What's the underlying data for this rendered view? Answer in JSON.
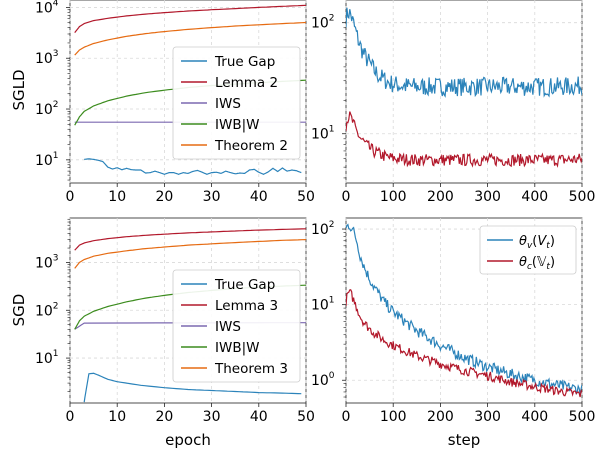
{
  "chart_data": [
    {
      "id": "sgld_bounds",
      "type": "line",
      "ylabel": "SGLD",
      "xlabel": "",
      "yscale": "log",
      "xlim": [
        0,
        50
      ],
      "ylim": [
        3.5,
        14000
      ],
      "xticks": [
        0,
        10,
        20,
        30,
        40,
        50
      ],
      "yticks": [
        {
          "value": 10,
          "label": "10",
          "exp": "1"
        },
        {
          "value": 100,
          "label": "10",
          "exp": "2"
        },
        {
          "value": 1000,
          "label": "10",
          "exp": "3"
        },
        {
          "value": 10000,
          "label": "10",
          "exp": "4"
        }
      ],
      "grid": true,
      "legend_position": "center-right",
      "series": [
        {
          "name": "True Gap",
          "color": "#2b83ba",
          "x": [
            3,
            4,
            5,
            6,
            7,
            8,
            9,
            10,
            11,
            12,
            13,
            14,
            15,
            16,
            17,
            18,
            19,
            20,
            21,
            22,
            23,
            24,
            25,
            26,
            27,
            28,
            29,
            30,
            31,
            32,
            33,
            34,
            35,
            36,
            37,
            38,
            39,
            40,
            41,
            42,
            43,
            44,
            45,
            46,
            47,
            48,
            49
          ],
          "y": [
            10.2,
            10.5,
            10.2,
            9.8,
            9.2,
            7.2,
            6.6,
            7.0,
            6.4,
            6.8,
            6.4,
            6.3,
            6.3,
            5.5,
            5.6,
            6.0,
            5.6,
            5.2,
            5.6,
            5.6,
            5.2,
            5.6,
            5.4,
            5.9,
            6.2,
            5.7,
            5.2,
            5.6,
            5.7,
            5.4,
            6.0,
            5.6,
            5.3,
            5.5,
            5.4,
            6.3,
            6.5,
            5.7,
            5.2,
            5.8,
            6.8,
            5.9,
            6.9,
            6.0,
            6.3,
            6.1,
            5.6
          ]
        },
        {
          "name": "Lemma 2",
          "color": "#b2182b",
          "x": [
            1,
            2,
            3,
            5,
            8,
            12,
            16,
            20,
            25,
            30,
            35,
            40,
            45,
            50
          ],
          "y": [
            3200,
            4200,
            4800,
            5500,
            6100,
            6800,
            7400,
            7900,
            8500,
            9000,
            9500,
            10000,
            10500,
            11000
          ]
        },
        {
          "name": "IWS",
          "color": "#7b68b0",
          "x": [
            1,
            50
          ],
          "y": [
            55,
            55
          ]
        },
        {
          "name": "IWB|W",
          "color": "#3c8c1e",
          "x": [
            1,
            2,
            3,
            5,
            8,
            12,
            16,
            20,
            25,
            30,
            35,
            40,
            45,
            50
          ],
          "y": [
            48,
            70,
            90,
            115,
            145,
            180,
            210,
            235,
            265,
            290,
            310,
            330,
            350,
            370
          ]
        },
        {
          "name": "Theorem 2",
          "color": "#e66b12",
          "x": [
            1,
            2,
            3,
            5,
            8,
            12,
            16,
            20,
            25,
            30,
            35,
            40,
            45,
            50
          ],
          "y": [
            1150,
            1450,
            1650,
            1950,
            2300,
            2700,
            3050,
            3350,
            3700,
            4000,
            4300,
            4550,
            4800,
            5050
          ]
        }
      ]
    },
    {
      "id": "sgld_theta",
      "type": "line",
      "ylabel": "",
      "xlabel": "",
      "yscale": "log",
      "xlim": [
        0,
        500
      ],
      "ylim": [
        3.6,
        160
      ],
      "xticks": [
        0,
        100,
        200,
        300,
        400,
        500
      ],
      "yticks": [
        {
          "value": 10,
          "label": "10",
          "exp": "1"
        },
        {
          "value": 100,
          "label": "10",
          "exp": "2"
        }
      ],
      "grid": true,
      "series": [
        {
          "name": "θ_v(V_t)",
          "color": "#2b83ba",
          "noise": 0.085,
          "x": [
            0,
            5,
            10,
            15,
            20,
            25,
            30,
            40,
            50,
            60,
            70,
            80,
            90,
            100,
            120,
            150,
            200,
            250,
            300,
            350,
            400,
            450,
            500
          ],
          "y": [
            110,
            125,
            118,
            100,
            85,
            72,
            62,
            50,
            43,
            37,
            33,
            31,
            29,
            28,
            27,
            26.5,
            26.5,
            26.5,
            26.5,
            26.5,
            26.5,
            26.5,
            27
          ]
        },
        {
          "name": "θ_c(𝕍_t)",
          "color": "#b2182b",
          "noise": 0.055,
          "x": [
            0,
            5,
            10,
            15,
            20,
            25,
            30,
            40,
            50,
            60,
            70,
            80,
            90,
            100,
            120,
            150,
            200,
            250,
            300,
            350,
            400,
            450,
            500
          ],
          "y": [
            12,
            14.5,
            14,
            12.5,
            11,
            10,
            9.2,
            8.2,
            7.4,
            6.9,
            6.6,
            6.3,
            6.1,
            6.0,
            5.9,
            5.8,
            5.8,
            5.8,
            5.8,
            5.8,
            5.8,
            5.8,
            5.9
          ]
        }
      ]
    },
    {
      "id": "sgd_bounds",
      "type": "line",
      "ylabel": "SGD",
      "xlabel": "epoch",
      "yscale": "log",
      "xlim": [
        0,
        50
      ],
      "ylim": [
        1.15,
        8500
      ],
      "xticks": [
        0,
        10,
        20,
        30,
        40,
        50
      ],
      "yticks": [
        {
          "value": 10,
          "label": "10",
          "exp": "1"
        },
        {
          "value": 100,
          "label": "10",
          "exp": "2"
        },
        {
          "value": 1000,
          "label": "10",
          "exp": "3"
        }
      ],
      "grid": true,
      "legend_position": "center-right",
      "series": [
        {
          "name": "True Gap",
          "color": "#2b83ba",
          "x": [
            3,
            4,
            5,
            6,
            8,
            10,
            15,
            20,
            25,
            30,
            35,
            40,
            45,
            49
          ],
          "y": [
            1.2,
            4.7,
            4.8,
            4.4,
            3.6,
            3.2,
            2.7,
            2.4,
            2.2,
            2.1,
            2.0,
            1.9,
            1.85,
            1.8
          ]
        },
        {
          "name": "Lemma 3",
          "color": "#b2182b",
          "x": [
            1,
            2,
            3,
            5,
            8,
            12,
            16,
            20,
            25,
            30,
            35,
            40,
            45,
            50
          ],
          "y": [
            1800,
            2300,
            2550,
            2850,
            3150,
            3450,
            3700,
            3900,
            4150,
            4350,
            4550,
            4750,
            4900,
            5050
          ]
        },
        {
          "name": "IWS",
          "color": "#7b68b0",
          "x": [
            1,
            3,
            50
          ],
          "y": [
            40,
            54,
            55
          ]
        },
        {
          "name": "IWB|W",
          "color": "#3c8c1e",
          "x": [
            1,
            2,
            3,
            5,
            8,
            12,
            16,
            20,
            25,
            30,
            35,
            40,
            45,
            50
          ],
          "y": [
            40,
            60,
            75,
            95,
            120,
            150,
            180,
            205,
            235,
            260,
            285,
            305,
            320,
            335
          ]
        },
        {
          "name": "Theorem 3",
          "color": "#e66b12",
          "x": [
            1,
            2,
            3,
            5,
            8,
            12,
            16,
            20,
            25,
            30,
            35,
            40,
            45,
            50
          ],
          "y": [
            750,
            1000,
            1150,
            1350,
            1550,
            1750,
            1950,
            2100,
            2300,
            2450,
            2600,
            2750,
            2900,
            3000
          ]
        }
      ]
    },
    {
      "id": "sgd_theta",
      "type": "line",
      "ylabel": "",
      "xlabel": "step",
      "yscale": "log",
      "xlim": [
        0,
        500
      ],
      "ylim": [
        0.5,
        140
      ],
      "xticks": [
        0,
        100,
        200,
        300,
        400,
        500
      ],
      "yticks": [
        {
          "value": 1,
          "label": "10",
          "exp": "0"
        },
        {
          "value": 10,
          "label": "10",
          "exp": "1"
        },
        {
          "value": 100,
          "label": "10",
          "exp": "2"
        }
      ],
      "grid": true,
      "legend_position": "upper right",
      "series": [
        {
          "name": "θ_v(V_t)",
          "color": "#2b83ba",
          "noise": 0.075,
          "x": [
            0,
            5,
            10,
            15,
            20,
            25,
            30,
            40,
            50,
            60,
            80,
            100,
            150,
            200,
            250,
            300,
            350,
            400,
            450,
            500
          ],
          "y": [
            100,
            115,
            108,
            95,
            80,
            62,
            45,
            30,
            22,
            17,
            11,
            8,
            4.5,
            2.9,
            2.0,
            1.5,
            1.2,
            1.0,
            0.85,
            0.75
          ]
        },
        {
          "name": "θ_c(𝕍_t)",
          "color": "#b2182b",
          "noise": 0.06,
          "x": [
            0,
            5,
            10,
            15,
            20,
            25,
            30,
            40,
            50,
            60,
            80,
            100,
            150,
            200,
            250,
            300,
            350,
            400,
            450,
            500
          ],
          "y": [
            11,
            14.5,
            14,
            12,
            10,
            8.5,
            7.0,
            5.6,
            4.8,
            4.2,
            3.4,
            2.9,
            2.1,
            1.65,
            1.35,
            1.15,
            0.95,
            0.82,
            0.72,
            0.65
          ]
        }
      ]
    }
  ],
  "legends": {
    "top_left": [
      "True Gap",
      "Lemma 2",
      "IWS",
      "IWB|W",
      "Theorem 2"
    ],
    "bottom_left": [
      "True Gap",
      "Lemma 3",
      "IWS",
      "IWB|W",
      "Theorem 3"
    ]
  }
}
